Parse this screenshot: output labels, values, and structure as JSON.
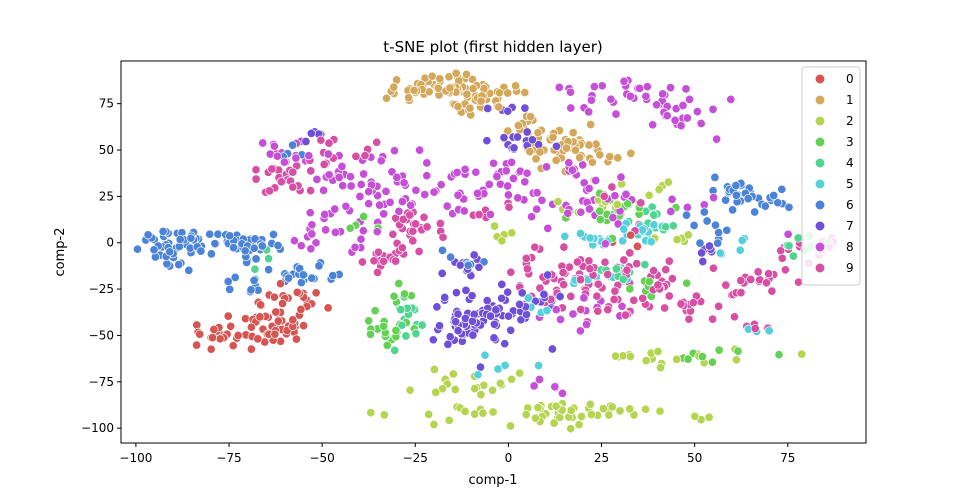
{
  "chart_data": {
    "type": "scatter",
    "title": "t-SNE plot (first hidden layer)",
    "xlabel": "comp-1",
    "ylabel": "comp-2",
    "xlim": [
      -104,
      96
    ],
    "ylim": [
      -108,
      98
    ],
    "xticks": [
      -100,
      -75,
      -50,
      -25,
      0,
      25,
      50,
      75
    ],
    "yticks": [
      -100,
      -75,
      -50,
      -25,
      0,
      25,
      50,
      75
    ],
    "grid": false,
    "legend_position": "top-right",
    "series": [
      {
        "name": "0",
        "color": "#d65451",
        "clusters": [
          [
            -63,
            -44,
            5,
            7,
            40
          ],
          [
            -75,
            -50,
            5,
            4,
            25
          ],
          [
            -58,
            -32,
            4,
            5,
            15
          ],
          [
            30,
            4,
            3,
            3,
            4
          ]
        ]
      },
      {
        "name": "1",
        "color": "#d4a85a",
        "clusters": [
          [
            -15,
            84,
            7,
            4,
            60
          ],
          [
            -8,
            77,
            5,
            4,
            30
          ],
          [
            5,
            62,
            4,
            3,
            12
          ],
          [
            15,
            52,
            6,
            5,
            45
          ],
          [
            25,
            46,
            3,
            2,
            6
          ],
          [
            -30,
            80,
            3,
            3,
            6
          ]
        ]
      },
      {
        "name": "2",
        "color": "#b5d44f",
        "clusters": [
          [
            5,
            -92,
            18,
            3,
            35
          ],
          [
            -10,
            -75,
            8,
            4,
            18
          ],
          [
            15,
            -93,
            12,
            3,
            20
          ],
          [
            38,
            -62,
            14,
            2,
            18
          ],
          [
            22,
            20,
            5,
            3,
            10
          ],
          [
            -2,
            5,
            3,
            3,
            5
          ],
          [
            45,
            2,
            4,
            3,
            5
          ],
          [
            35,
            32,
            4,
            3,
            5
          ]
        ]
      },
      {
        "name": "3",
        "color": "#63d154",
        "clusters": [
          [
            -33,
            -48,
            3,
            5,
            20
          ],
          [
            30,
            18,
            6,
            5,
            20
          ],
          [
            38,
            -20,
            5,
            4,
            10
          ],
          [
            55,
            -62,
            8,
            2,
            8
          ],
          [
            -28,
            -28,
            2,
            4,
            6
          ],
          [
            -40,
            10,
            3,
            3,
            4
          ]
        ]
      },
      {
        "name": "4",
        "color": "#4fd491",
        "clusters": [
          [
            -27,
            -40,
            3,
            6,
            14
          ],
          [
            38,
            10,
            5,
            5,
            15
          ],
          [
            30,
            -15,
            4,
            4,
            10
          ],
          [
            80,
            -2,
            6,
            3,
            12
          ],
          [
            -65,
            -12,
            3,
            3,
            4
          ]
        ]
      },
      {
        "name": "5",
        "color": "#55cfdb",
        "clusters": [
          [
            33,
            3,
            5,
            4,
            20
          ],
          [
            20,
            2,
            5,
            3,
            12
          ],
          [
            25,
            -20,
            4,
            3,
            8
          ],
          [
            5,
            -35,
            3,
            3,
            5
          ],
          [
            60,
            0,
            4,
            3,
            5
          ],
          [
            -5,
            -65,
            5,
            3,
            5
          ],
          [
            65,
            -45,
            3,
            3,
            3
          ]
        ]
      },
      {
        "name": "6",
        "color": "#4a83d8",
        "clusters": [
          [
            -90,
            -2,
            4,
            5,
            35
          ],
          [
            -78,
            2,
            8,
            3,
            30
          ],
          [
            -68,
            -5,
            6,
            4,
            25
          ],
          [
            -56,
            -18,
            5,
            3,
            20
          ],
          [
            -72,
            -22,
            5,
            3,
            8
          ],
          [
            62,
            27,
            4,
            3,
            20
          ],
          [
            70,
            22,
            5,
            4,
            15
          ],
          [
            55,
            10,
            4,
            4,
            10
          ],
          [
            -12,
            -10,
            3,
            3,
            8
          ],
          [
            -60,
            48,
            3,
            3,
            4
          ]
        ]
      },
      {
        "name": "7",
        "color": "#6f4fd8",
        "clusters": [
          [
            -8,
            -40,
            7,
            8,
            75
          ],
          [
            5,
            -30,
            4,
            5,
            20
          ],
          [
            2,
            55,
            5,
            3,
            15
          ],
          [
            -12,
            -12,
            4,
            4,
            10
          ],
          [
            -52,
            58,
            3,
            2,
            6
          ],
          [
            55,
            -5,
            3,
            3,
            6
          ],
          [
            -3,
            72,
            3,
            3,
            5
          ]
        ]
      },
      {
        "name": "8",
        "color": "#c54fd6",
        "clusters": [
          [
            30,
            80,
            10,
            4,
            30
          ],
          [
            45,
            68,
            6,
            5,
            20
          ],
          [
            -35,
            35,
            10,
            6,
            40
          ],
          [
            -60,
            48,
            5,
            5,
            15
          ],
          [
            -8,
            25,
            8,
            7,
            35
          ],
          [
            -45,
            10,
            5,
            6,
            20
          ],
          [
            -32,
            22,
            4,
            4,
            10
          ],
          [
            25,
            22,
            8,
            8,
            30
          ],
          [
            20,
            -40,
            6,
            5,
            12
          ],
          [
            82,
            0,
            4,
            3,
            8
          ],
          [
            10,
            -80,
            4,
            4,
            6
          ],
          [
            -55,
            0,
            3,
            3,
            6
          ],
          [
            15,
            40,
            4,
            3,
            8
          ],
          [
            -5,
            40,
            4,
            3,
            8
          ],
          [
            50,
            22,
            3,
            3,
            5
          ]
        ]
      },
      {
        "name": "9",
        "color": "#d64fa4",
        "clusters": [
          [
            -60,
            35,
            4,
            7,
            25
          ],
          [
            -45,
            50,
            5,
            3,
            12
          ],
          [
            -26,
            8,
            4,
            7,
            25
          ],
          [
            -34,
            -8,
            3,
            4,
            10
          ],
          [
            20,
            -20,
            10,
            8,
            70
          ],
          [
            48,
            -32,
            5,
            3,
            15
          ],
          [
            31,
            -36,
            6,
            4,
            12
          ],
          [
            65,
            -20,
            5,
            5,
            20
          ],
          [
            80,
            -5,
            4,
            3,
            8
          ],
          [
            38,
            -20,
            4,
            3,
            8
          ],
          [
            62,
            -45,
            5,
            3,
            6
          ],
          [
            30,
            25,
            4,
            3,
            6
          ],
          [
            -28,
            -2,
            3,
            4,
            6
          ],
          [
            -5,
            15,
            4,
            3,
            6
          ]
        ]
      }
    ]
  }
}
